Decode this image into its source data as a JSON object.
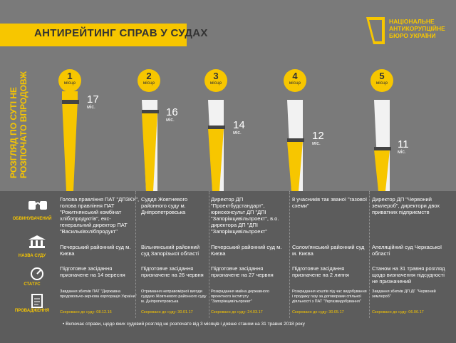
{
  "header": {
    "title": "АНТИРЕЙТИНГ СПРАВ У СУДАХ",
    "brand_line1": "НАЦІОНАЛЬНЕ",
    "brand_line2": "АНТИКОРУПЦІЙНЕ",
    "brand_line3": "БЮРО УКРАЇНИ"
  },
  "side_label": "РОЗГЛЯД ПО СУТІ НЕ РОЗПОЧАТО ВПРОДОВЖ",
  "icons": [
    {
      "icon": "handcuffs-icon",
      "label": "ОБВИНУВАЧЕНИЙ"
    },
    {
      "icon": "courthouse-icon",
      "label": "НАЗВА СУДУ"
    },
    {
      "icon": "status-gauge-icon",
      "label": "СТАТУС"
    },
    {
      "icon": "document-icon",
      "label": "ПРОВАДЖЕННЯ"
    }
  ],
  "cases": [
    {
      "place": "1",
      "place_label": "місце",
      "months": "17",
      "months_unit": "міс.",
      "accused": "Голова правління ПАТ \"ДПЗКУ\", голова правління ПАТ \"Рокитнянський комбінат хлібопродуктів\", екс-генеральний директор ПАТ \"Васильківхлібпродукт\"",
      "court": "Печерський районний суд м. Києва",
      "status": "Підготовче засідання призначене на 14 вересня",
      "proceeding": "Завдання збитків ПАТ \"Державна продовольчо-зернова корпорація України\"",
      "sent": "Скеровано до суду: 08.12.16"
    },
    {
      "place": "2",
      "place_label": "місце",
      "months": "16",
      "months_unit": "міс.",
      "accused": "Суддя Жовтневого районного суду м. Дніпропетровська",
      "court": "Вільнянський районний суд Запорізької області",
      "status": "Підготовче засідання призначене на 26 червня",
      "proceeding": "Отримання неправомірної вигоди суддею Жовтневого районного суду м. Дніпропетровська",
      "sent": "Скеровано до суду: 30.01.17"
    },
    {
      "place": "3",
      "place_label": "місце",
      "months": "14",
      "months_unit": "міс.",
      "accused": "Директор ДП \"Проектбудстандарт\", юрисконсульт ДП \"ДПІ \"Запоріжцивільпроект\", в.о. директора ДП \"ДПІ \"Запоріжцивільпроект\"",
      "court": "Печерський районний суд м. Києва",
      "status": "Підготовче засідання призначене на 27 червня",
      "proceeding": "Розкрадання майна державного проектного інституту \"Запоріжцивільпроект\"",
      "sent": "Скеровано до суду: 24.03.17"
    },
    {
      "place": "4",
      "place_label": "місце",
      "months": "12",
      "months_unit": "міс.",
      "accused": "8 учасників так званої \"газової схеми\"",
      "court": "Солом'янський районний суд м. Києва",
      "status": "Підготовче засідання призначене на 2 липня",
      "proceeding": "Розкрадання коштів під час видобування і продажу газу за договорами спільної діяльності з ПАТ \"Укргазвидобування\"",
      "sent": "Скеровано до суду: 30.05.17"
    },
    {
      "place": "5",
      "place_label": "місце",
      "months": "11",
      "months_unit": "міс.",
      "accused": "Директор ДП \"Червоний землероб\", директори двох приватних підприємств",
      "court": "Апеляційний суд Черкаської області",
      "status": "Станом на 31 травня розгляд щодо визначення підсудності не призначений",
      "proceeding": "Завдання збитків ДП ДГ \"Червоний землероб\"",
      "sent": "Скеровано до суду: 06.06.17"
    }
  ],
  "footnote": "Включає справи, щодо яких судовий розгляд не розпочато від 3 місяців і довше станом на 31 травня 2018 року",
  "colors": {
    "accent": "#f7c600",
    "background": "#7a7a7a",
    "dark": "#5c5c5c"
  }
}
